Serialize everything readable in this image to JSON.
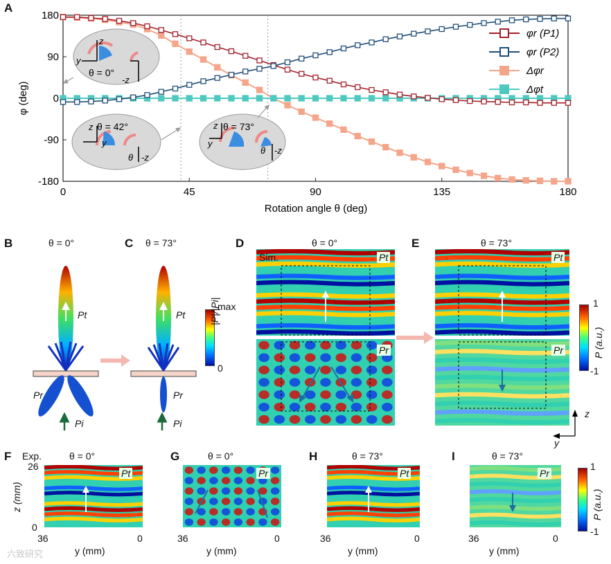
{
  "panel_letters": {
    "A": "A",
    "B": "B",
    "C": "C",
    "D": "D",
    "E": "E",
    "F": "F",
    "G": "G",
    "H": "H",
    "I": "I"
  },
  "chart_data": {
    "type": "line",
    "ylabel": "φ (deg)",
    "xlabel": "Rotation angle θ (deg)",
    "xlim": [
      0,
      180
    ],
    "ylim": [
      -180,
      180
    ],
    "xticks": [
      0,
      45,
      90,
      135,
      180
    ],
    "yticks": [
      180,
      90,
      0,
      -90,
      -180
    ],
    "reference_lines_x": [
      42,
      73
    ],
    "legend_position": "top-right",
    "colors": {
      "p1": "#a31f2b",
      "p2": "#1f4e79",
      "dr": "#f4a58a",
      "dt": "#4ec9c0"
    },
    "x": [
      0,
      5,
      10,
      15,
      20,
      25,
      30,
      35,
      40,
      45,
      50,
      55,
      60,
      65,
      70,
      75,
      80,
      85,
      90,
      95,
      100,
      105,
      110,
      115,
      120,
      125,
      130,
      135,
      140,
      145,
      150,
      155,
      160,
      165,
      170,
      175,
      180
    ],
    "series": [
      {
        "name": "φr (P1)",
        "marker": "open-square",
        "values": [
          176,
          176,
          174,
          172,
          168,
          163,
          156,
          148,
          139,
          130,
          121,
          111,
          102,
          92,
          82,
          72,
          62,
          53,
          45,
          38,
          30,
          24,
          18,
          13,
          8,
          4,
          1,
          -2,
          -4,
          -6,
          -7,
          -8,
          -9,
          -9,
          -10,
          -10,
          -10
        ]
      },
      {
        "name": "φr (P2)",
        "marker": "open-square",
        "values": [
          -8,
          -8,
          -7,
          -5,
          -2,
          2,
          7,
          14,
          21,
          29,
          37,
          44,
          51,
          58,
          64,
          70,
          78,
          86,
          93,
          100,
          108,
          115,
          121,
          128,
          134,
          140,
          145,
          150,
          155,
          159,
          163,
          166,
          169,
          171,
          172,
          173,
          173
        ]
      },
      {
        "name": "Δφr",
        "marker": "filled-square",
        "values": [
          176,
          175,
          173,
          170,
          165,
          160,
          150,
          136,
          118,
          101,
          84,
          67,
          50,
          34,
          18,
          0,
          -15,
          -29,
          -42,
          -55,
          -68,
          -82,
          -94,
          -106,
          -118,
          -128,
          -138,
          -147,
          -155,
          -162,
          -168,
          -173,
          -176,
          -178,
          -179,
          -180,
          -180
        ]
      },
      {
        "name": "Δφt",
        "marker": "filled-square",
        "values": [
          0,
          0,
          0,
          0,
          0,
          0,
          0,
          0,
          0,
          0,
          0,
          0,
          0,
          0,
          0,
          0,
          0,
          0,
          0,
          0,
          0,
          0,
          0,
          0,
          0,
          0,
          0,
          0,
          0,
          0,
          0,
          0,
          0,
          0,
          0,
          0,
          0
        ]
      }
    ],
    "insets": [
      {
        "theta": "θ = 0°",
        "axes": [
          "z",
          "y",
          "-z"
        ]
      },
      {
        "theta": "θ = 42°",
        "axes": [
          "z",
          "y",
          "θ",
          "-z"
        ]
      },
      {
        "theta": "θ = 73°",
        "axes": [
          "z",
          "y",
          "θ",
          "-z"
        ]
      }
    ]
  },
  "panelB": {
    "title": "θ = 0°",
    "pt": "Pt",
    "pr": "Pr",
    "pi": "Pi"
  },
  "panelC": {
    "title": "θ = 73°",
    "pt": "Pt",
    "pr": "Pr",
    "pi": "Pi"
  },
  "lobe_colorbar": {
    "max": "max",
    "min": "0",
    "label": "|P|/|Pi|"
  },
  "panelD": {
    "title": "θ = 0°",
    "tag": "Sim.",
    "pt": "Pt",
    "pr": "Pr"
  },
  "panelE": {
    "title": "θ = 73°",
    "pt": "Pt",
    "pr": "Pr"
  },
  "field_colorbar": {
    "max": "1",
    "min": "-1",
    "label": "P (a.u.)"
  },
  "axes_triad": {
    "z": "z",
    "y": "y"
  },
  "panelF": {
    "title": "θ = 0°",
    "tag": "Exp.",
    "pt": "Pt",
    "ylabel": "z (mm)",
    "y_top": "26",
    "y_bottom": "0",
    "x_left": "36",
    "x_right": "0",
    "xlabel": "y (mm)"
  },
  "panelG": {
    "title": "θ = 0°",
    "pr": "Pr",
    "x_left": "36",
    "x_right": "0",
    "xlabel": "y (mm)"
  },
  "panelH": {
    "title": "θ = 73°",
    "pt": "Pt",
    "x_left": "36",
    "x_right": "0",
    "xlabel": "y (mm)"
  },
  "panelI": {
    "title": "θ = 73°",
    "pr": "Pr",
    "x_left": "36",
    "x_right": "0",
    "xlabel": "y (mm)"
  },
  "exp_colorbar": {
    "max": "1",
    "min": "-1",
    "label": "P (a.u.)"
  },
  "watermark": "六致研究"
}
